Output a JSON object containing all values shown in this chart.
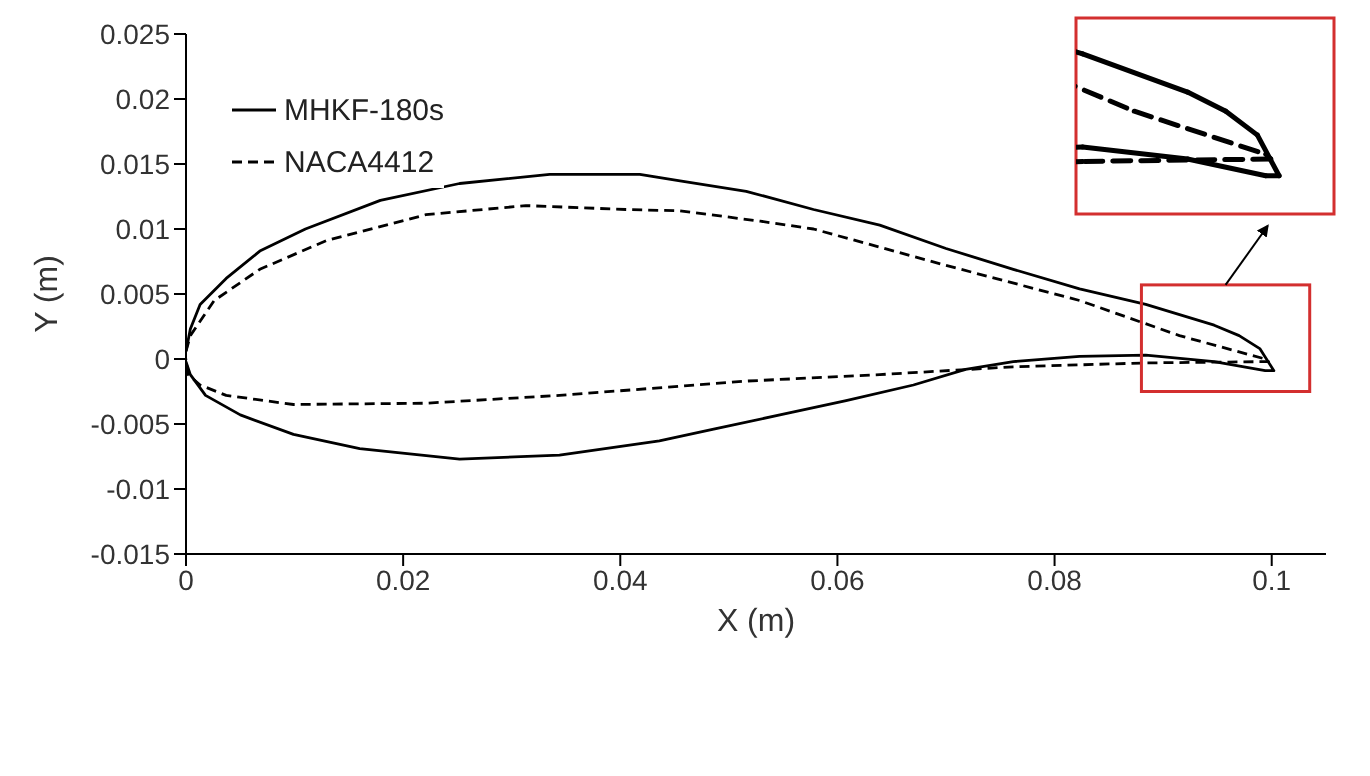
{
  "chart_data": {
    "type": "line",
    "xlabel": "X (m)",
    "ylabel": "Y (m)",
    "xlim": [
      0,
      0.105
    ],
    "xticks": [
      0,
      0.02,
      0.04,
      0.06,
      0.08,
      0.1
    ],
    "ylim": [
      -0.015,
      0.025
    ],
    "yticks": [
      -0.015,
      -0.01,
      -0.005,
      0,
      0.005,
      0.01,
      0.015,
      0.02,
      0.025
    ],
    "legend": "top left",
    "marker": "none",
    "series": [
      {
        "name": "MHKF-180s",
        "color": "#000000",
        "line_style": "solid",
        "x": [
          0,
          0.0004,
          0.0013,
          0.0037,
          0.0068,
          0.011,
          0.0179,
          0.0252,
          0.0335,
          0.0418,
          0.0455,
          0.0516,
          0.0578,
          0.0639,
          0.07,
          0.0762,
          0.0823,
          0.0884,
          0.0947,
          0.097,
          0.0989,
          0.1002,
          0.0994,
          0.0947,
          0.0884,
          0.0823,
          0.0762,
          0.0718,
          0.067,
          0.0608,
          0.0547,
          0.0486,
          0.0436,
          0.0344,
          0.0252,
          0.016,
          0.0099,
          0.005,
          0.0018,
          0.0004,
          0
        ],
        "values": [
          0.0006,
          0.0023,
          0.0042,
          0.0062,
          0.0083,
          0.01,
          0.0122,
          0.0135,
          0.0142,
          0.0142,
          0.0137,
          0.0129,
          0.0115,
          0.0103,
          0.0085,
          0.0069,
          0.0054,
          0.0042,
          0.0026,
          0.0018,
          0.0008,
          -0.0009,
          -0.0009,
          -0.0002,
          0.0003,
          0.0002,
          -0.0002,
          -0.0008,
          -0.002,
          -0.0032,
          -0.0043,
          -0.0054,
          -0.0063,
          -0.0074,
          -0.0077,
          -0.0069,
          -0.0058,
          -0.0043,
          -0.0028,
          -0.0012,
          -0.0002
        ]
      },
      {
        "name": "NACA4412",
        "color": "#000000",
        "line_style": "dashed",
        "x": [
          0,
          0.0004,
          0.0026,
          0.0068,
          0.0129,
          0.0221,
          0.0313,
          0.0405,
          0.0455,
          0.0529,
          0.0578,
          0.07,
          0.0823,
          0.0915,
          0.0994,
          0.0997,
          0.0884,
          0.0762,
          0.0639,
          0.0516,
          0.0344,
          0.0221,
          0.0099,
          0.0037,
          0.0013,
          0.0002,
          0
        ],
        "values": [
          0.0006,
          0.0018,
          0.0045,
          0.0069,
          0.0091,
          0.0111,
          0.0118,
          0.0115,
          0.0114,
          0.0106,
          0.01,
          0.0072,
          0.0045,
          0.0018,
          0,
          -0.0002,
          -0.0003,
          -0.0006,
          -0.0012,
          -0.0017,
          -0.0028,
          -0.0034,
          -0.0035,
          -0.0028,
          -0.002,
          -0.0012,
          0
        ]
      }
    ]
  }
}
